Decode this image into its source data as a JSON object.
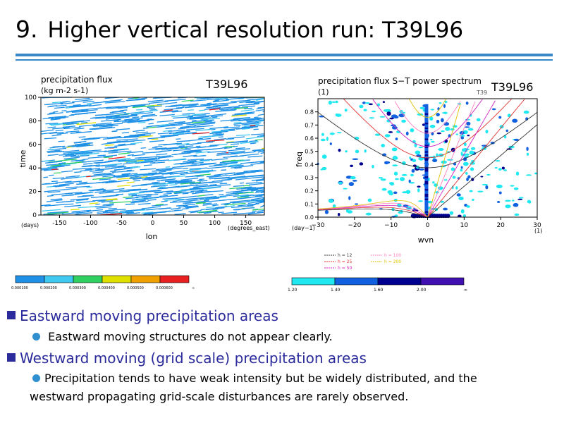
{
  "slide": {
    "number": "9.",
    "title": "Higher vertical resolution run: T39L96",
    "tag_left": "T39L96",
    "tag_right": "T39L96"
  },
  "left_plot": {
    "title": "precipitation flux",
    "units": "(kg m-2 s-1)",
    "ylabel": "time",
    "yunit": "(days)",
    "xlabel": "lon",
    "xunit": "(degrees_east)",
    "xticks": [
      "-150",
      "-100",
      "-50",
      "0",
      "50",
      "100",
      "150"
    ],
    "yticks": [
      "0",
      "20",
      "40",
      "60",
      "80",
      "100"
    ],
    "colorbar": {
      "labels": [
        "0.000100",
        "0.000200",
        "0.000300",
        "0.000400",
        "0.000500",
        "0.000600",
        "∞"
      ],
      "colors": [
        "#1e90e6",
        "#3fc8f0",
        "#30d060",
        "#e0e000",
        "#f0a000",
        "#e82020"
      ]
    }
  },
  "right_plot": {
    "title": "precipitation flux S−T power spectrum",
    "sub": "(1)",
    "model_tag": "T39",
    "ylabel": "freq",
    "yunit": "(day−1)",
    "xlabel": "wvn",
    "xunit": "(1)",
    "xticks": [
      "−30",
      "−20",
      "−10",
      "0",
      "10",
      "20",
      "30"
    ],
    "yticks": [
      "0.0",
      "0.1",
      "0.2",
      "0.3",
      "0.4",
      "0.5",
      "0.6",
      "0.7",
      "0.8"
    ],
    "legend": [
      {
        "label": "h = 12",
        "color": "#333333"
      },
      {
        "label": "h = 25",
        "color": "#e03030"
      },
      {
        "label": "h = 50",
        "color": "#d020c0"
      },
      {
        "label": "h = 100",
        "color": "#ff80c0"
      },
      {
        "label": "h = 200",
        "color": "#e0c000"
      }
    ],
    "colorbar": {
      "labels": [
        "1.20",
        "1.40",
        "1.60",
        "2.00",
        "∞"
      ],
      "colors": [
        "#20e8f0",
        "#1060e0",
        "#000090",
        "#4010b0"
      ]
    }
  },
  "bullets": [
    {
      "heading": "Eastward moving precipitation areas",
      "text": "Eastward moving structures do not appear clearly."
    },
    {
      "heading": "Westward moving (grid scale) precipitation areas",
      "text_line1": "Precipitation tends to have weak intensity but be widely distributed, and the",
      "text_line2": "westward propagating grid-scale disturbances are rarely observed."
    }
  ]
}
